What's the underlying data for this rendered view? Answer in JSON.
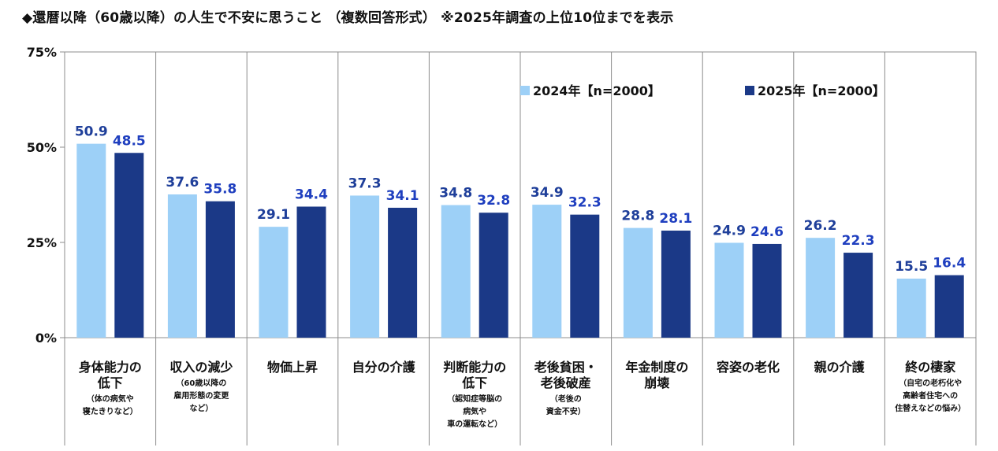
{
  "title": "◆還暦以降（60歳以降）の人生で不安に思うこと （複数回答形式） ※2025年調査の上位10位までを表示",
  "chart_data": {
    "type": "bar",
    "ylim": [
      0,
      75
    ],
    "yticks": [
      "0%",
      "25%",
      "50%",
      "75%"
    ],
    "ytick_values": [
      0,
      25,
      50,
      75
    ],
    "grid": "vertical category separators",
    "legend_position": "top-right",
    "categories": [
      {
        "lines": [
          "身体能力の",
          "低下"
        ],
        "sub": [
          "（体の病気や",
          "寝たきりなど）"
        ]
      },
      {
        "lines": [
          "収入の減少"
        ],
        "sub": [
          "（60歳以降の",
          "雇用形態の変更",
          "など）"
        ]
      },
      {
        "lines": [
          "物価上昇"
        ],
        "sub": []
      },
      {
        "lines": [
          "自分の介護"
        ],
        "sub": []
      },
      {
        "lines": [
          "判断能力の",
          "低下"
        ],
        "sub": [
          "（認知症等脳の",
          "病気や",
          "車の運転など）"
        ]
      },
      {
        "lines": [
          "老後貧困・",
          "老後破産"
        ],
        "sub": [
          "（老後の",
          "資金不安）"
        ]
      },
      {
        "lines": [
          "年金制度の",
          "崩壊"
        ],
        "sub": []
      },
      {
        "lines": [
          "容姿の老化"
        ],
        "sub": []
      },
      {
        "lines": [
          "親の介護"
        ],
        "sub": []
      },
      {
        "lines": [
          "終の棲家"
        ],
        "sub": [
          "（自宅の老朽化や",
          "高齢者住宅への",
          "住替えなどの悩み）"
        ]
      }
    ],
    "series": [
      {
        "name": "2024年【n=2000】",
        "color": "#9dd0f7",
        "label_color": "#1f3f9a",
        "values": [
          50.9,
          37.6,
          29.1,
          37.3,
          34.8,
          34.9,
          28.8,
          24.9,
          26.2,
          15.5
        ]
      },
      {
        "name": "2025年【n=2000】",
        "color": "#1b3987",
        "label_color": "#1f3fbf",
        "values": [
          48.5,
          35.8,
          34.4,
          34.1,
          32.8,
          32.3,
          28.1,
          24.6,
          22.3,
          16.4
        ]
      }
    ]
  }
}
